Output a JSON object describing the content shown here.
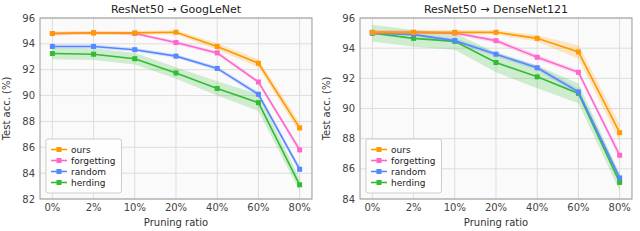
{
  "chart_data": [
    {
      "type": "line",
      "title": "ResNet50 → GoogLeNet",
      "x_label": "Pruning ratio",
      "y_label": "Test acc. (%)",
      "categories": [
        "0%",
        "2%",
        "10%",
        "20%",
        "40%",
        "60%",
        "80%"
      ],
      "series": [
        {
          "name": "herding",
          "color": "#33bb33",
          "values": [
            93.25,
            93.2,
            92.85,
            91.75,
            90.55,
            89.45,
            83.1
          ],
          "errors": [
            0.45,
            0.45,
            0.45,
            0.45,
            0.55,
            0.65,
            0.5
          ]
        },
        {
          "name": "random",
          "color": "#5588ff",
          "values": [
            93.8,
            93.8,
            93.55,
            93.05,
            92.1,
            90.1,
            84.3
          ],
          "errors": [
            0.15,
            0.15,
            0.15,
            0.15,
            0.15,
            0.2,
            0.25
          ]
        },
        {
          "name": "forgetting",
          "color": "#ff66cc",
          "values": [
            94.8,
            94.85,
            94.8,
            94.1,
            93.3,
            91.05,
            85.8
          ],
          "errors": [
            0.1,
            0.1,
            0.1,
            0.15,
            0.15,
            0.15,
            0.25
          ]
        },
        {
          "name": "ours",
          "color": "#ff9900",
          "values": [
            94.8,
            94.85,
            94.85,
            94.9,
            93.8,
            92.5,
            87.5
          ],
          "errors": [
            0.15,
            0.15,
            0.15,
            0.15,
            0.25,
            0.3,
            0.4
          ]
        }
      ],
      "ylim": [
        82,
        96
      ],
      "yticks": [
        82,
        84,
        86,
        88,
        90,
        92,
        94,
        96
      ],
      "grid": true,
      "legend": "lower left",
      "marker": "square"
    },
    {
      "type": "line",
      "title": "ResNet50 → DenseNet121",
      "x_label": "Pruning ratio",
      "y_label": "Test acc. (%)",
      "categories": [
        "0%",
        "2%",
        "10%",
        "20%",
        "40%",
        "60%",
        "80%"
      ],
      "series": [
        {
          "name": "herding",
          "color": "#33bb33",
          "values": [
            95.0,
            94.65,
            94.45,
            93.05,
            92.1,
            91.0,
            85.1
          ],
          "errors": [
            0.55,
            0.55,
            0.55,
            0.65,
            0.75,
            0.65,
            0.55
          ]
        },
        {
          "name": "random",
          "color": "#5588ff",
          "values": [
            95.0,
            94.9,
            94.5,
            93.6,
            92.7,
            91.1,
            85.4
          ],
          "errors": [
            0.1,
            0.1,
            0.15,
            0.15,
            0.15,
            0.2,
            0.25
          ]
        },
        {
          "name": "forgetting",
          "color": "#ff66cc",
          "values": [
            95.05,
            95.05,
            95.0,
            94.5,
            93.4,
            92.4,
            86.9
          ],
          "errors": [
            0.1,
            0.1,
            0.1,
            0.15,
            0.15,
            0.15,
            0.25
          ]
        },
        {
          "name": "ours",
          "color": "#ff9900",
          "values": [
            95.05,
            95.05,
            95.05,
            95.05,
            94.65,
            93.75,
            88.4
          ],
          "errors": [
            0.15,
            0.15,
            0.15,
            0.15,
            0.2,
            0.45,
            0.55
          ]
        }
      ],
      "ylim": [
        84,
        96
      ],
      "yticks": [
        84,
        86,
        88,
        90,
        92,
        94,
        96
      ],
      "grid": true,
      "legend": "lower left",
      "marker": "square"
    }
  ]
}
